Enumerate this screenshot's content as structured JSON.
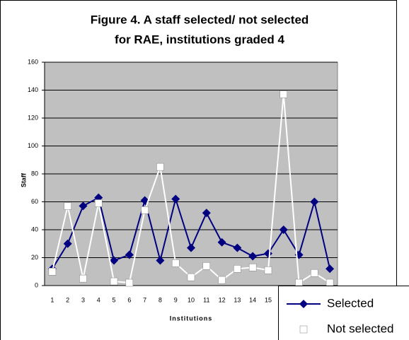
{
  "chart_data": {
    "type": "line",
    "title": [
      "Figure 4. A staff selected/ not selected",
      "for RAE, institutions graded 4"
    ],
    "x_label": "Institutions",
    "y_label": "Staff",
    "categories": [
      "1",
      "2",
      "3",
      "4",
      "5",
      "6",
      "7",
      "8",
      "9",
      "10",
      "11",
      "12",
      "13",
      "14",
      "15",
      null,
      null,
      null,
      null
    ],
    "series": [
      {
        "name": "Selected",
        "color": "#000080",
        "marker": "diamond",
        "values": [
          12,
          30,
          57,
          63,
          18,
          22,
          61,
          18,
          62,
          27,
          52,
          31,
          27,
          21,
          23,
          40,
          22,
          60,
          12
        ]
      },
      {
        "name": "Not selected",
        "color": "#ffffff",
        "marker": "square",
        "values": [
          10,
          57,
          5,
          59,
          3,
          2,
          54,
          85,
          16,
          6,
          14,
          4,
          12,
          13,
          11,
          137,
          2,
          9,
          2
        ]
      }
    ],
    "ylim": [
      0,
      160
    ],
    "yticks": [
      0,
      20,
      40,
      60,
      80,
      100,
      120,
      140,
      160
    ],
    "grid": true,
    "legend": "bottom-right"
  }
}
